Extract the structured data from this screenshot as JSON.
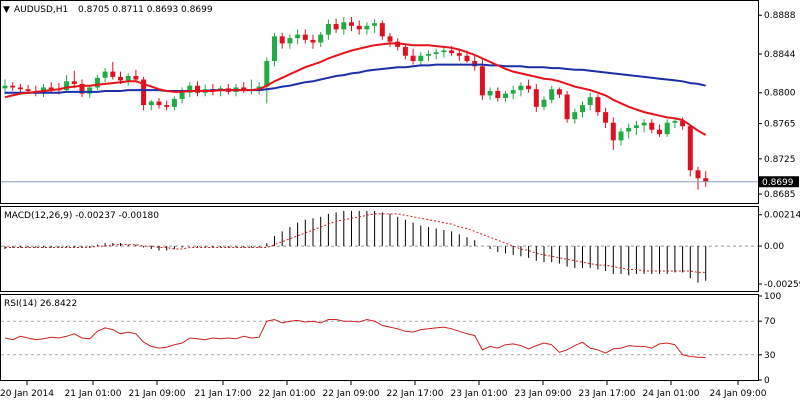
{
  "header": {
    "symbol_label": "AUDUSD,H1",
    "quote": "0.8705 0.8711 0.8693 0.8699"
  },
  "price_panel": {
    "current_price_label": "0.8699"
  },
  "macd_panel": {
    "label": "MACD(12,26,9) -0.00237 -0.00180"
  },
  "rsi_panel": {
    "label": "RSI(14) 26.8422"
  },
  "colors": {
    "bull_candle": "#22aa44",
    "bear_candle": "#dd1122",
    "ma_fast": "#e4141b",
    "ma_slow": "#1c2fa8",
    "macd_signal": "#cc2222",
    "rsi_line": "#cc2222"
  },
  "chart_data": [
    {
      "type": "candlestick",
      "title": "AUDUSD,H1",
      "x_ticks": [
        "20 Jan 2014",
        "21 Jan 01:00",
        "21 Jan 09:00",
        "21 Jan 17:00",
        "22 Jan 01:00",
        "22 Jan 09:00",
        "22 Jan 17:00",
        "23 Jan 01:00",
        "23 Jan 09:00",
        "23 Jan 17:00",
        "24 Jan 01:00",
        "24 Jan 09:00"
      ],
      "y_ticks": [
        "0.8888",
        "0.8844",
        "0.8800",
        "0.8765",
        "0.8725",
        "0.8685"
      ],
      "ylim": [
        0.8676,
        0.8903
      ],
      "last_price": 0.8699,
      "candles": [
        {
          "o": 0.8805,
          "h": 0.8815,
          "l": 0.8798,
          "c": 0.8808
        },
        {
          "o": 0.8808,
          "h": 0.8812,
          "l": 0.8802,
          "c": 0.8806
        },
        {
          "o": 0.8806,
          "h": 0.881,
          "l": 0.88,
          "c": 0.8804
        },
        {
          "o": 0.8804,
          "h": 0.8809,
          "l": 0.8799,
          "c": 0.8802
        },
        {
          "o": 0.8802,
          "h": 0.8808,
          "l": 0.8796,
          "c": 0.88
        },
        {
          "o": 0.88,
          "h": 0.881,
          "l": 0.8795,
          "c": 0.8806
        },
        {
          "o": 0.8806,
          "h": 0.8812,
          "l": 0.88,
          "c": 0.8804
        },
        {
          "o": 0.8804,
          "h": 0.8811,
          "l": 0.8798,
          "c": 0.8803
        },
        {
          "o": 0.8803,
          "h": 0.882,
          "l": 0.88,
          "c": 0.8813
        },
        {
          "o": 0.8813,
          "h": 0.8825,
          "l": 0.8805,
          "c": 0.881
        },
        {
          "o": 0.881,
          "h": 0.8815,
          "l": 0.8795,
          "c": 0.8799
        },
        {
          "o": 0.8799,
          "h": 0.8808,
          "l": 0.8794,
          "c": 0.8806
        },
        {
          "o": 0.8806,
          "h": 0.882,
          "l": 0.8803,
          "c": 0.8817
        },
        {
          "o": 0.8817,
          "h": 0.8828,
          "l": 0.8812,
          "c": 0.8824
        },
        {
          "o": 0.8824,
          "h": 0.8835,
          "l": 0.8815,
          "c": 0.8818
        },
        {
          "o": 0.8818,
          "h": 0.8824,
          "l": 0.881,
          "c": 0.8814
        },
        {
          "o": 0.8814,
          "h": 0.8822,
          "l": 0.8808,
          "c": 0.8819
        },
        {
          "o": 0.8819,
          "h": 0.8826,
          "l": 0.8812,
          "c": 0.8815
        },
        {
          "o": 0.8815,
          "h": 0.8818,
          "l": 0.878,
          "c": 0.8786
        },
        {
          "o": 0.8786,
          "h": 0.8792,
          "l": 0.878,
          "c": 0.879
        },
        {
          "o": 0.879,
          "h": 0.8794,
          "l": 0.8782,
          "c": 0.8786
        },
        {
          "o": 0.8786,
          "h": 0.8791,
          "l": 0.878,
          "c": 0.8784
        },
        {
          "o": 0.8784,
          "h": 0.8796,
          "l": 0.878,
          "c": 0.8793
        },
        {
          "o": 0.8793,
          "h": 0.8806,
          "l": 0.8788,
          "c": 0.88
        },
        {
          "o": 0.88,
          "h": 0.8812,
          "l": 0.8795,
          "c": 0.8808
        },
        {
          "o": 0.8808,
          "h": 0.8813,
          "l": 0.8796,
          "c": 0.88
        },
        {
          "o": 0.88,
          "h": 0.8809,
          "l": 0.8796,
          "c": 0.8804
        },
        {
          "o": 0.8804,
          "h": 0.881,
          "l": 0.8797,
          "c": 0.8802
        },
        {
          "o": 0.8802,
          "h": 0.8808,
          "l": 0.8796,
          "c": 0.8805
        },
        {
          "o": 0.8805,
          "h": 0.881,
          "l": 0.8798,
          "c": 0.8801
        },
        {
          "o": 0.8801,
          "h": 0.881,
          "l": 0.8796,
          "c": 0.8806
        },
        {
          "o": 0.8806,
          "h": 0.8812,
          "l": 0.88,
          "c": 0.8803
        },
        {
          "o": 0.8803,
          "h": 0.8815,
          "l": 0.8798,
          "c": 0.8804
        },
        {
          "o": 0.8804,
          "h": 0.8812,
          "l": 0.8798,
          "c": 0.8807
        },
        {
          "o": 0.8807,
          "h": 0.884,
          "l": 0.8788,
          "c": 0.8836
        },
        {
          "o": 0.8836,
          "h": 0.8868,
          "l": 0.883,
          "c": 0.8864
        },
        {
          "o": 0.8864,
          "h": 0.8868,
          "l": 0.885,
          "c": 0.8856
        },
        {
          "o": 0.8856,
          "h": 0.8866,
          "l": 0.885,
          "c": 0.8862
        },
        {
          "o": 0.8862,
          "h": 0.8872,
          "l": 0.8855,
          "c": 0.8866
        },
        {
          "o": 0.8866,
          "h": 0.8872,
          "l": 0.8856,
          "c": 0.886
        },
        {
          "o": 0.886,
          "h": 0.8866,
          "l": 0.885,
          "c": 0.8857
        },
        {
          "o": 0.8857,
          "h": 0.8869,
          "l": 0.8852,
          "c": 0.8866
        },
        {
          "o": 0.8866,
          "h": 0.8883,
          "l": 0.886,
          "c": 0.8878
        },
        {
          "o": 0.8878,
          "h": 0.8884,
          "l": 0.8868,
          "c": 0.8872
        },
        {
          "o": 0.8872,
          "h": 0.8886,
          "l": 0.8866,
          "c": 0.888
        },
        {
          "o": 0.888,
          "h": 0.8886,
          "l": 0.887,
          "c": 0.8876
        },
        {
          "o": 0.8876,
          "h": 0.8882,
          "l": 0.8866,
          "c": 0.8872
        },
        {
          "o": 0.8872,
          "h": 0.888,
          "l": 0.8866,
          "c": 0.8876
        },
        {
          "o": 0.8876,
          "h": 0.8884,
          "l": 0.8868,
          "c": 0.8879
        },
        {
          "o": 0.8879,
          "h": 0.8882,
          "l": 0.886,
          "c": 0.8864
        },
        {
          "o": 0.8864,
          "h": 0.8868,
          "l": 0.8852,
          "c": 0.8858
        },
        {
          "o": 0.8858,
          "h": 0.8862,
          "l": 0.8848,
          "c": 0.8852
        },
        {
          "o": 0.8852,
          "h": 0.8856,
          "l": 0.8838,
          "c": 0.8842
        },
        {
          "o": 0.8842,
          "h": 0.885,
          "l": 0.8832,
          "c": 0.8836
        },
        {
          "o": 0.8836,
          "h": 0.8846,
          "l": 0.8832,
          "c": 0.8842
        },
        {
          "o": 0.8842,
          "h": 0.8848,
          "l": 0.8836,
          "c": 0.8844
        },
        {
          "o": 0.8844,
          "h": 0.885,
          "l": 0.8838,
          "c": 0.8846
        },
        {
          "o": 0.8846,
          "h": 0.8852,
          "l": 0.884,
          "c": 0.8848
        },
        {
          "o": 0.8848,
          "h": 0.8853,
          "l": 0.8842,
          "c": 0.8845
        },
        {
          "o": 0.8845,
          "h": 0.885,
          "l": 0.8836,
          "c": 0.8842
        },
        {
          "o": 0.8842,
          "h": 0.8848,
          "l": 0.8834,
          "c": 0.8836
        },
        {
          "o": 0.8836,
          "h": 0.8842,
          "l": 0.8825,
          "c": 0.883
        },
        {
          "o": 0.883,
          "h": 0.8838,
          "l": 0.8792,
          "c": 0.8797
        },
        {
          "o": 0.8797,
          "h": 0.8806,
          "l": 0.8792,
          "c": 0.8802
        },
        {
          "o": 0.8802,
          "h": 0.8806,
          "l": 0.879,
          "c": 0.8794
        },
        {
          "o": 0.8794,
          "h": 0.8802,
          "l": 0.879,
          "c": 0.8799
        },
        {
          "o": 0.8799,
          "h": 0.8808,
          "l": 0.8793,
          "c": 0.8803
        },
        {
          "o": 0.8803,
          "h": 0.8812,
          "l": 0.8796,
          "c": 0.8808
        },
        {
          "o": 0.8808,
          "h": 0.8815,
          "l": 0.88,
          "c": 0.8804
        },
        {
          "o": 0.8804,
          "h": 0.881,
          "l": 0.8778,
          "c": 0.8784
        },
        {
          "o": 0.8784,
          "h": 0.8796,
          "l": 0.878,
          "c": 0.8792
        },
        {
          "o": 0.8792,
          "h": 0.8808,
          "l": 0.8788,
          "c": 0.8804
        },
        {
          "o": 0.8804,
          "h": 0.8806,
          "l": 0.8794,
          "c": 0.8798
        },
        {
          "o": 0.8798,
          "h": 0.8802,
          "l": 0.8766,
          "c": 0.877
        },
        {
          "o": 0.877,
          "h": 0.8782,
          "l": 0.8765,
          "c": 0.8778
        },
        {
          "o": 0.8778,
          "h": 0.879,
          "l": 0.8772,
          "c": 0.8786
        },
        {
          "o": 0.8786,
          "h": 0.88,
          "l": 0.878,
          "c": 0.8795
        },
        {
          "o": 0.8795,
          "h": 0.8798,
          "l": 0.8774,
          "c": 0.8778
        },
        {
          "o": 0.8778,
          "h": 0.8783,
          "l": 0.876,
          "c": 0.8766
        },
        {
          "o": 0.8766,
          "h": 0.8772,
          "l": 0.8735,
          "c": 0.8746
        },
        {
          "o": 0.8746,
          "h": 0.876,
          "l": 0.874,
          "c": 0.8756
        },
        {
          "o": 0.8756,
          "h": 0.8765,
          "l": 0.8748,
          "c": 0.876
        },
        {
          "o": 0.876,
          "h": 0.8768,
          "l": 0.8752,
          "c": 0.8763
        },
        {
          "o": 0.8763,
          "h": 0.877,
          "l": 0.8755,
          "c": 0.8766
        },
        {
          "o": 0.8766,
          "h": 0.877,
          "l": 0.8754,
          "c": 0.8758
        },
        {
          "o": 0.8758,
          "h": 0.8764,
          "l": 0.875,
          "c": 0.8753
        },
        {
          "o": 0.8753,
          "h": 0.877,
          "l": 0.875,
          "c": 0.8766
        },
        {
          "o": 0.8766,
          "h": 0.8772,
          "l": 0.876,
          "c": 0.8768
        },
        {
          "o": 0.8768,
          "h": 0.8772,
          "l": 0.8758,
          "c": 0.8762
        },
        {
          "o": 0.8762,
          "h": 0.8764,
          "l": 0.8705,
          "c": 0.8712
        },
        {
          "o": 0.8712,
          "h": 0.8716,
          "l": 0.869,
          "c": 0.8703
        },
        {
          "o": 0.8703,
          "h": 0.8711,
          "l": 0.8693,
          "c": 0.8699
        }
      ],
      "ma_fast": [
        0.8795,
        0.8797,
        0.8799,
        0.88,
        0.8801,
        0.8802,
        0.8803,
        0.8804,
        0.8806,
        0.8807,
        0.8808,
        0.8808,
        0.8809,
        0.881,
        0.8811,
        0.8812,
        0.8813,
        0.8813,
        0.881,
        0.8807,
        0.8804,
        0.8802,
        0.8801,
        0.8801,
        0.8802,
        0.8802,
        0.8802,
        0.8802,
        0.8803,
        0.8803,
        0.8803,
        0.8803,
        0.8803,
        0.8804,
        0.8808,
        0.8813,
        0.8817,
        0.8821,
        0.8825,
        0.8829,
        0.8832,
        0.8835,
        0.8839,
        0.8842,
        0.8845,
        0.8848,
        0.885,
        0.8852,
        0.8854,
        0.8855,
        0.8856,
        0.8856,
        0.8855,
        0.8854,
        0.8854,
        0.8854,
        0.8853,
        0.8852,
        0.8851,
        0.8849,
        0.8846,
        0.8843,
        0.8839,
        0.8835,
        0.8831,
        0.8827,
        0.8824,
        0.8822,
        0.882,
        0.8818,
        0.8816,
        0.8815,
        0.8813,
        0.881,
        0.8807,
        0.8805,
        0.8803,
        0.88,
        0.8797,
        0.8792,
        0.8788,
        0.8784,
        0.8781,
        0.8778,
        0.8776,
        0.8774,
        0.8772,
        0.8771,
        0.8769,
        0.8763,
        0.8757,
        0.8752
      ],
      "ma_slow": [
        0.88,
        0.88,
        0.88,
        0.88,
        0.88,
        0.88,
        0.88,
        0.88,
        0.8801,
        0.8801,
        0.8801,
        0.8801,
        0.8801,
        0.8802,
        0.8802,
        0.8802,
        0.8803,
        0.8803,
        0.8803,
        0.8803,
        0.8803,
        0.8802,
        0.8802,
        0.8802,
        0.8802,
        0.8802,
        0.8802,
        0.8803,
        0.8803,
        0.8803,
        0.8803,
        0.8803,
        0.8803,
        0.8803,
        0.8804,
        0.8805,
        0.8807,
        0.8808,
        0.881,
        0.8812,
        0.8813,
        0.8815,
        0.8817,
        0.8819,
        0.882,
        0.8822,
        0.8823,
        0.8825,
        0.8826,
        0.8827,
        0.8828,
        0.8829,
        0.8829,
        0.883,
        0.8831,
        0.8831,
        0.8832,
        0.8832,
        0.8832,
        0.8832,
        0.8832,
        0.8832,
        0.8832,
        0.8831,
        0.8831,
        0.883,
        0.883,
        0.883,
        0.8829,
        0.8829,
        0.8829,
        0.8828,
        0.8828,
        0.8827,
        0.8826,
        0.8826,
        0.8825,
        0.8824,
        0.8823,
        0.8822,
        0.8821,
        0.882,
        0.8819,
        0.8818,
        0.8817,
        0.8816,
        0.8815,
        0.8814,
        0.8813,
        0.8811,
        0.881,
        0.8808
      ]
    },
    {
      "type": "bar",
      "title": "MACD(12,26,9) -0.00237 -0.00180",
      "y_ticks": [
        "0.00214",
        "0.00",
        "-0.00259"
      ],
      "ylim": [
        -0.003,
        0.0026
      ],
      "macd": [
        -0.0002,
        -0.0001,
        -0.0001,
        -0.0001,
        -0.0001,
        -0.0001,
        -0.0001,
        -0.0001,
        -0.0001,
        -0.0001,
        -0.0001,
        -0.0001,
        0.0001,
        0.0002,
        0.0002,
        0.0002,
        0.0001,
        0.0001,
        -0.0001,
        -0.0002,
        -0.0003,
        -0.0003,
        -0.0002,
        -0.0001,
        0.0,
        -0.0001,
        -0.0001,
        -0.0001,
        -0.0001,
        -0.0001,
        -0.0001,
        -0.0001,
        -0.0001,
        -0.0001,
        0.0002,
        0.0007,
        0.001,
        0.0013,
        0.0016,
        0.0018,
        0.0019,
        0.002,
        0.0022,
        0.0023,
        0.0024,
        0.0024,
        0.0024,
        0.0024,
        0.0024,
        0.0023,
        0.0022,
        0.002,
        0.0018,
        0.0016,
        0.0014,
        0.0013,
        0.0012,
        0.0011,
        0.001,
        0.0008,
        0.0006,
        0.0004,
        0.0,
        -0.0002,
        -0.0004,
        -0.0005,
        -0.0006,
        -0.0007,
        -0.0008,
        -0.001,
        -0.0011,
        -0.0011,
        -0.0012,
        -0.0014,
        -0.0015,
        -0.0015,
        -0.0015,
        -0.0016,
        -0.0017,
        -0.0019,
        -0.0019,
        -0.002,
        -0.0019,
        -0.0019,
        -0.0019,
        -0.0019,
        -0.0019,
        -0.0018,
        -0.0018,
        -0.0022,
        -0.0025,
        -0.00237
      ],
      "signal": [
        -0.0001,
        -0.0001,
        -0.0001,
        -0.0001,
        -0.0001,
        -0.0001,
        -0.0001,
        -0.0001,
        -0.0001,
        -0.0001,
        -0.0001,
        -0.0001,
        0.0,
        0.0,
        0.0001,
        0.0001,
        0.0001,
        0.0001,
        0.0,
        0.0,
        -0.0001,
        -0.0001,
        -0.0002,
        -0.0002,
        -0.0001,
        -0.0001,
        -0.0001,
        -0.0001,
        -0.0001,
        -0.0001,
        -0.0001,
        -0.0001,
        -0.0001,
        -0.0001,
        -0.0001,
        0.0001,
        0.0003,
        0.0005,
        0.0007,
        0.0009,
        0.0011,
        0.0013,
        0.0015,
        0.0017,
        0.0018,
        0.0019,
        0.002,
        0.0021,
        0.0022,
        0.0022,
        0.0022,
        0.0022,
        0.0021,
        0.002,
        0.0019,
        0.0018,
        0.0017,
        0.0016,
        0.0015,
        0.0013,
        0.0012,
        0.001,
        0.0008,
        0.0006,
        0.0004,
        0.0002,
        0.0,
        -0.0002,
        -0.0003,
        -0.0005,
        -0.0006,
        -0.0007,
        -0.0008,
        -0.0009,
        -0.001,
        -0.0011,
        -0.0012,
        -0.0013,
        -0.0013,
        -0.0014,
        -0.0015,
        -0.0016,
        -0.0016,
        -0.0017,
        -0.0017,
        -0.0017,
        -0.0017,
        -0.0017,
        -0.0017,
        -0.0017,
        -0.0018,
        -0.0018
      ]
    },
    {
      "type": "line",
      "title": "RSI(14) 26.8422",
      "y_ticks": [
        "100",
        "70",
        "30",
        "0"
      ],
      "ylim": [
        0,
        100
      ],
      "levels": [
        70,
        30
      ],
      "values": [
        50,
        48,
        52,
        50,
        48,
        49,
        51,
        50,
        52,
        55,
        50,
        49,
        58,
        62,
        60,
        55,
        57,
        55,
        45,
        40,
        38,
        39,
        42,
        44,
        50,
        49,
        48,
        50,
        49,
        50,
        49,
        52,
        50,
        51,
        70,
        72,
        68,
        70,
        71,
        69,
        70,
        68,
        72,
        72,
        70,
        70,
        69,
        72,
        70,
        65,
        63,
        61,
        58,
        57,
        60,
        61,
        62,
        63,
        61,
        58,
        55,
        53,
        36,
        40,
        38,
        42,
        43,
        41,
        37,
        41,
        44,
        42,
        33,
        36,
        41,
        45,
        38,
        36,
        32,
        37,
        38,
        41,
        40,
        40,
        38,
        43,
        44,
        42,
        30,
        28,
        27,
        26.8
      ]
    }
  ]
}
